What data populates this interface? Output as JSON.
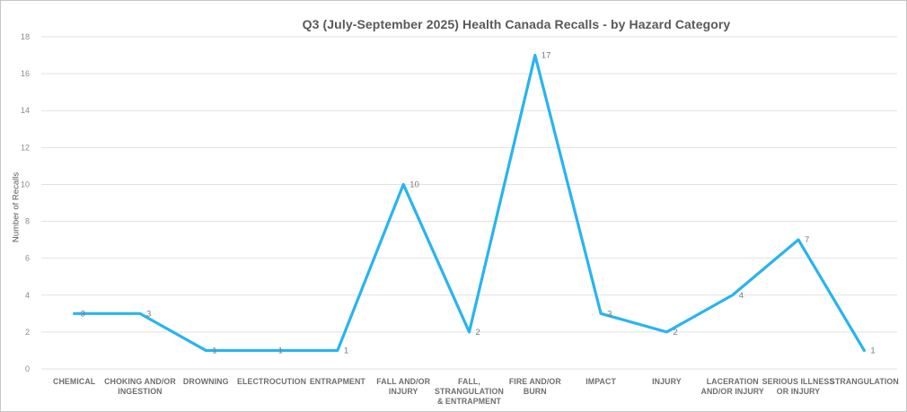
{
  "chart_data": {
    "type": "line",
    "title": "Q3 (July-September 2025) Health Canada Recalls - by Hazard Category",
    "xlabel": "",
    "ylabel": "Number of Recalls",
    "categories": [
      "CHEMICAL",
      "CHOKING AND/OR INGESTION",
      "DROWNING",
      "ELECTROCUTION",
      "ENTRAPMENT",
      "FALL AND/OR INJURY",
      "FALL, STRANGULATION & ENTRAPMENT",
      "FIRE AND/OR BURN",
      "IMPACT",
      "INJURY",
      "LACERATION AND/OR INJURY",
      "SERIOUS ILLNESS OR INJURY",
      "STRANGULATION"
    ],
    "series": [
      {
        "name": "Number of Recalls",
        "values": [
          3,
          3,
          1,
          1,
          1,
          10,
          2,
          17,
          3,
          2,
          4,
          7,
          1
        ],
        "color": "#28b4f0"
      }
    ],
    "data_labels": [
      "3",
      "3",
      "1",
      "1",
      "1",
      "10",
      "2",
      "17",
      "3",
      "2",
      "4",
      "7",
      "1"
    ],
    "ylim": [
      0,
      18
    ],
    "ytick_step": 2,
    "ytick_labels": [
      "0",
      "2",
      "4",
      "6",
      "8",
      "10",
      "12",
      "14",
      "16",
      "18"
    ],
    "grid": true,
    "legend": "none",
    "data_label_position": "right",
    "colors": {
      "line": "#28b4f0",
      "gridline": "#e2e2e2",
      "title_text": "#595959",
      "axis_text": "#6e6e6e",
      "tick_text": "#8a8a8a",
      "data_label_text": "#7a7a7a",
      "background": "#ffffff",
      "border": "#c6c6c6"
    }
  }
}
